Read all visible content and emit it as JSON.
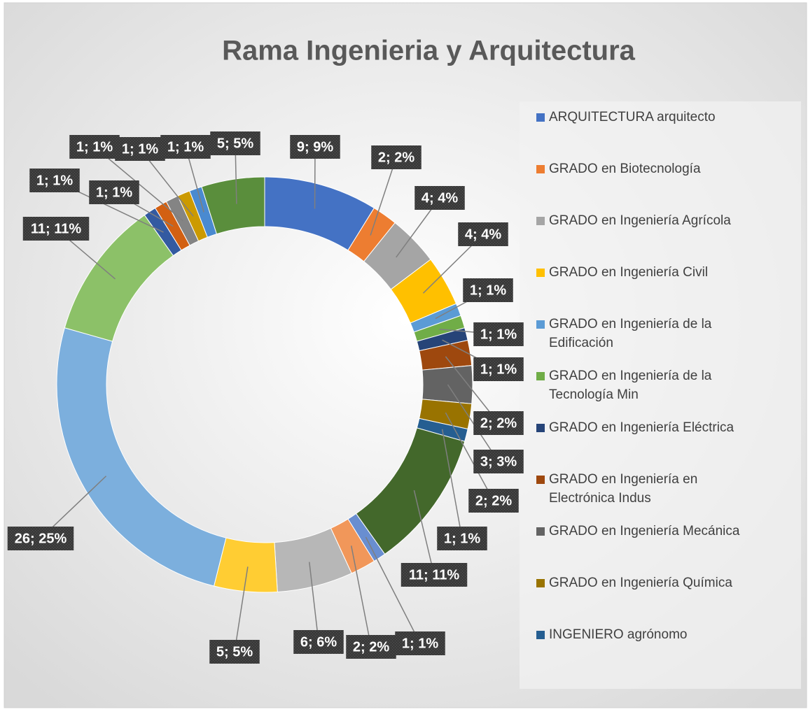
{
  "chart_data": {
    "type": "donut",
    "title": "Rama Ingenieria y Arquitectura",
    "categories": [
      "ARQUITECTURA arquitecto",
      "GRADO en Biotecnología",
      "GRADO en Ingeniería Agrícola",
      "GRADO en Ingeniería Civil",
      "GRADO en Ingeniería de la Edificación",
      "GRADO en Ingeniería de la Tecnología Min",
      "GRADO en Ingeniería Eléctrica",
      "GRADO en Ingeniería en Electrónica Indus",
      "GRADO en Ingeniería Mecánica",
      "GRADO en Ingeniería Química",
      "INGENIERO agrónomo",
      null,
      null,
      null,
      null,
      null,
      null,
      null,
      null,
      null,
      null,
      null,
      null,
      null
    ],
    "values": [
      9,
      2,
      4,
      4,
      1,
      1,
      1,
      2,
      3,
      2,
      1,
      11,
      1,
      2,
      6,
      5,
      26,
      11,
      1,
      1,
      1,
      1,
      1,
      5
    ],
    "value_labels": [
      "9; 9%",
      "2; 2%",
      "4; 4%",
      "4; 4%",
      "1; 1%",
      "1; 1%",
      "1; 1%",
      "2; 2%",
      "3; 3%",
      "2; 2%",
      "1; 1%",
      "11; 11%",
      "1; 1%",
      "2; 2%",
      "6; 6%",
      "5; 5%",
      "26; 25%",
      "11; 11%",
      "1; 1%",
      "1; 1%",
      "1; 1%",
      "1; 1%",
      "1; 1%",
      "5; 5%"
    ],
    "colors": [
      "#4472c4",
      "#ed7d31",
      "#a5a5a5",
      "#ffc000",
      "#5b9bd5",
      "#70ad47",
      "#264478",
      "#9e480e",
      "#636363",
      "#997300",
      "#255e91",
      "#43682b",
      "#698ed0",
      "#f1975a",
      "#b7b7b7",
      "#ffcd33",
      "#7cafdd",
      "#8cc168",
      "#335aa1",
      "#d26012",
      "#848484",
      "#cc9a00",
      "#4a8ad0",
      "#5a8e3c"
    ],
    "legend": "right"
  }
}
